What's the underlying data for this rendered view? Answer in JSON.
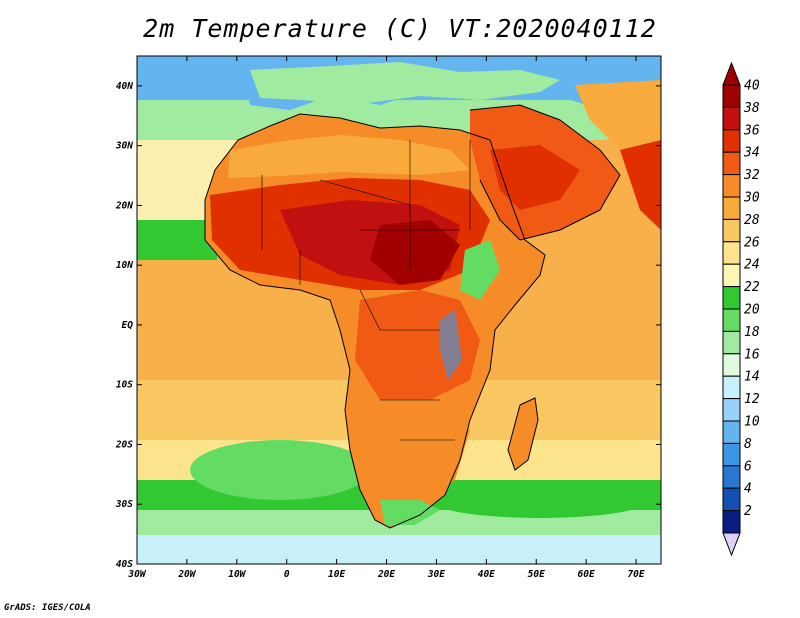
{
  "title": "2m Temperature (C) VT:2020040112",
  "credit": "GrADS: IGES/COLA",
  "map": {
    "lon_range": [
      -30,
      75
    ],
    "lat_range": [
      -40,
      45
    ],
    "lat_ticks": [
      {
        "value": 40,
        "label": "40N"
      },
      {
        "value": 30,
        "label": "30N"
      },
      {
        "value": 20,
        "label": "20N"
      },
      {
        "value": 10,
        "label": "10N"
      },
      {
        "value": 0,
        "label": "EQ"
      },
      {
        "value": -10,
        "label": "10S"
      },
      {
        "value": -20,
        "label": "20S"
      },
      {
        "value": -30,
        "label": "30S"
      },
      {
        "value": -40,
        "label": "40S"
      }
    ],
    "lon_ticks": [
      {
        "value": -30,
        "label": "30W"
      },
      {
        "value": -20,
        "label": "20W"
      },
      {
        "value": -10,
        "label": "10W"
      },
      {
        "value": 0,
        "label": "0"
      },
      {
        "value": 10,
        "label": "10E"
      },
      {
        "value": 20,
        "label": "20E"
      },
      {
        "value": 30,
        "label": "30E"
      },
      {
        "value": 40,
        "label": "40E"
      },
      {
        "value": 50,
        "label": "50E"
      },
      {
        "value": 60,
        "label": "60E"
      },
      {
        "value": 70,
        "label": "70E"
      }
    ]
  },
  "colorbar": {
    "levels": [
      40,
      38,
      36,
      34,
      32,
      30,
      28,
      26,
      24,
      22,
      20,
      18,
      16,
      14,
      12,
      10,
      8,
      6,
      4,
      2
    ],
    "colors": [
      "#a00000",
      "#c01010",
      "#e03000",
      "#f05a14",
      "#f58c28",
      "#f8aa3c",
      "#fac862",
      "#fce48c",
      "#fcf5b4",
      "#32c832",
      "#64dc64",
      "#a0eba0",
      "#e0fae0",
      "#c8f0fa",
      "#96d2fa",
      "#64b4f0",
      "#3c96e6",
      "#2878d2",
      "#1450b4",
      "#0a1e82"
    ],
    "top_cap_color": "#a00000",
    "bottom_cap_color": "#dcd2fa"
  }
}
